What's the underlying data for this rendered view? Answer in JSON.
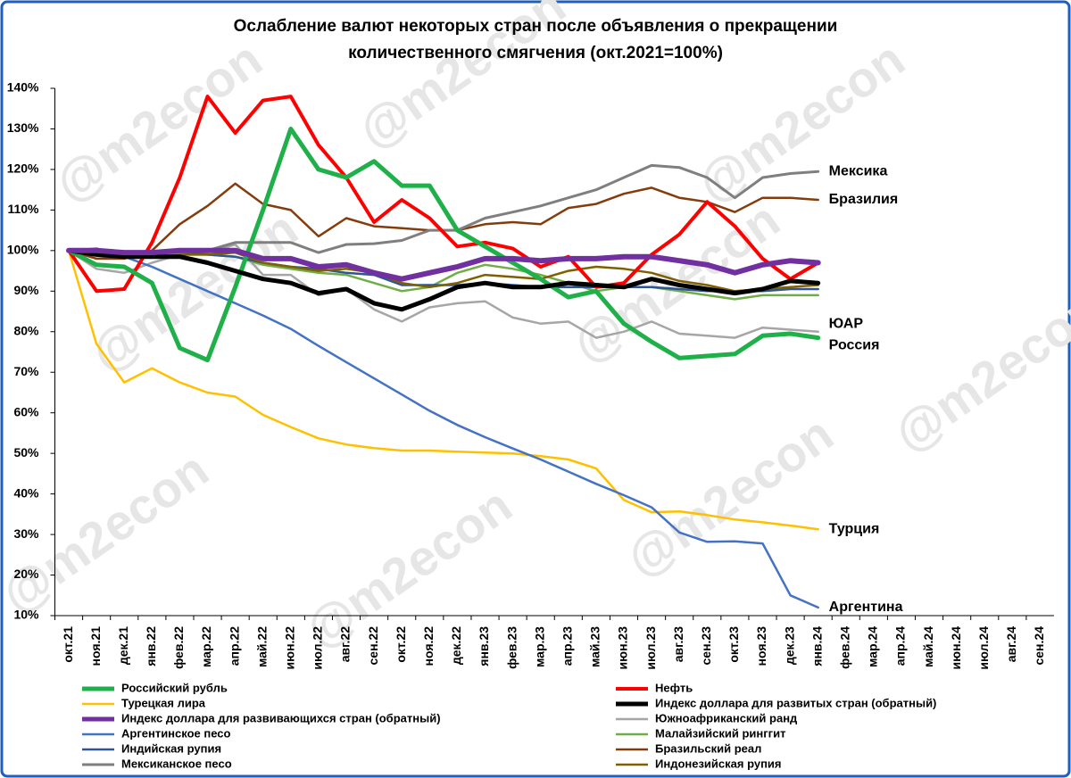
{
  "chart_data": {
    "type": "line",
    "title": [
      "Ослабление валют некоторых стран после объявления о прекращении",
      "количественного смягчения  (окт.2021=100%)"
    ],
    "watermark": "@m2econ",
    "categories": [
      "окт.21",
      "ноя.21",
      "дек.21",
      "янв.22",
      "фев.22",
      "мар.22",
      "апр.22",
      "май.22",
      "июн.22",
      "июл.22",
      "авг.22",
      "сен.22",
      "окт.22",
      "ноя.22",
      "дек.22",
      "янв.23",
      "фев.23",
      "мар.23",
      "апр.23",
      "май.23",
      "июн.23",
      "июл.23",
      "авг.23",
      "сен.23",
      "окт.23",
      "ноя.23",
      "дек.23",
      "янв.24",
      "фев.24",
      "мар.24",
      "апр.24",
      "май.24",
      "июн.24",
      "июл.24",
      "авг.24",
      "сен.24"
    ],
    "ylim": [
      10,
      140
    ],
    "yticks": [
      {
        "value": 10,
        "label": "10%"
      },
      {
        "value": 20,
        "label": "20%"
      },
      {
        "value": 30,
        "label": "30%"
      },
      {
        "value": 40,
        "label": "40%"
      },
      {
        "value": 50,
        "label": "50%"
      },
      {
        "value": 60,
        "label": "60%"
      },
      {
        "value": 70,
        "label": "70%"
      },
      {
        "value": 80,
        "label": "80%"
      },
      {
        "value": 90,
        "label": "90%"
      },
      {
        "value": 100,
        "label": "100%"
      },
      {
        "value": 110,
        "label": "110%"
      },
      {
        "value": 120,
        "label": "120%"
      },
      {
        "value": 130,
        "label": "130%"
      },
      {
        "value": 140,
        "label": "140%"
      }
    ],
    "grid": false,
    "series": [
      {
        "name": "Российский рубль",
        "color": "#1fb04a",
        "width": 5,
        "label": "Россия",
        "values": [
          100,
          96.5,
          96,
          92,
          76,
          73,
          91,
          110,
          130,
          120,
          118,
          122,
          116,
          116,
          105,
          101,
          97,
          93,
          88.5,
          90,
          82,
          77.5,
          73.5,
          74,
          74.5,
          79,
          79.5,
          78.5,
          null,
          null,
          null,
          null,
          null,
          null,
          null,
          null
        ]
      },
      {
        "name": "Нефть",
        "color": "#ff0000",
        "width": 4,
        "values": [
          100,
          90,
          90.5,
          102,
          118,
          138,
          129,
          137,
          138,
          126,
          118,
          107,
          112.5,
          108,
          101,
          102,
          100.5,
          96,
          98.5,
          91,
          92,
          99,
          104,
          112,
          106,
          98,
          93,
          97,
          null,
          null,
          null,
          null,
          null,
          null,
          null,
          null
        ]
      },
      {
        "name": "Турецкая лира",
        "color": "#ffc000",
        "width": 2.5,
        "label": "Турция",
        "values": [
          100,
          77,
          67.5,
          71,
          67.5,
          65,
          64,
          59.5,
          56.5,
          53.7,
          52.2,
          51.3,
          50.7,
          50.7,
          50.4,
          50.2,
          50,
          49.3,
          48.5,
          46.3,
          38.5,
          35.5,
          35.7,
          34.8,
          33.7,
          33,
          32.2,
          31.3,
          null,
          null,
          null,
          null,
          null,
          null,
          null,
          null
        ]
      },
      {
        "name": "Индекс доллара для развитых стран (обратный)",
        "color": "#000000",
        "width": 5,
        "values": [
          100,
          99,
          98.5,
          98.5,
          98.5,
          97,
          95,
          93,
          92,
          89.5,
          90.5,
          87,
          85.5,
          88,
          91,
          92,
          91,
          91,
          92,
          91.5,
          91,
          93,
          91.5,
          90.5,
          89.5,
          90.5,
          92.5,
          92,
          null,
          null,
          null,
          null,
          null,
          null,
          null,
          null
        ]
      },
      {
        "name": "Индекс доллара для развивающихся стран (обратный)",
        "color": "#7030a0",
        "width": 6,
        "values": [
          100,
          100,
          99.5,
          99.5,
          100,
          100,
          100,
          98,
          98,
          96,
          96.5,
          94.5,
          93,
          94.5,
          96,
          98,
          98,
          97.5,
          98,
          98,
          98.5,
          98.5,
          97.5,
          96.5,
          94.5,
          96.5,
          97.5,
          97,
          null,
          null,
          null,
          null,
          null,
          null,
          null,
          null
        ]
      },
      {
        "name": "Южноафриканский ранд",
        "color": "#a6a6a6",
        "width": 2.5,
        "label": "ЮАР",
        "values": [
          100,
          95.5,
          94.5,
          97,
          99,
          99.5,
          101.5,
          94,
          94,
          89,
          90.5,
          85.5,
          82.5,
          86,
          87,
          87.5,
          83.5,
          82,
          82.5,
          78.5,
          80,
          82.5,
          79.5,
          79,
          78.5,
          81,
          80.5,
          80,
          null,
          null,
          null,
          null,
          null,
          null,
          null,
          null
        ]
      },
      {
        "name": "Аргентинское песо",
        "color": "#4472c4",
        "width": 2.5,
        "label": "Аргентина",
        "values": [
          100,
          100,
          98.5,
          96,
          93,
          90,
          87,
          84,
          80.7,
          76.5,
          72.5,
          68.5,
          64.5,
          60.5,
          57,
          54,
          51.2,
          48.5,
          45.5,
          42.5,
          39.7,
          36.7,
          30.5,
          28.2,
          28.3,
          27.8,
          15,
          12,
          null,
          null,
          null,
          null,
          null,
          null,
          null,
          null
        ]
      },
      {
        "name": "Малайзийский ринггит",
        "color": "#70ad47",
        "width": 2.5,
        "values": [
          100,
          99.5,
          99.5,
          99,
          99,
          99,
          98.5,
          96.5,
          95.5,
          94.5,
          94,
          92,
          90,
          91,
          94.5,
          96.5,
          95.5,
          94,
          92,
          90,
          91,
          91,
          90,
          89,
          88,
          89,
          89,
          89,
          null,
          null,
          null,
          null,
          null,
          null,
          null,
          null
        ]
      },
      {
        "name": "Индийская рупия",
        "color": "#2f5597",
        "width": 2.5,
        "values": [
          100,
          100.5,
          99,
          99.5,
          99.5,
          99,
          98.5,
          97,
          96,
          95.5,
          94.5,
          94,
          91.5,
          91.5,
          91.5,
          92,
          91.5,
          91,
          91,
          91,
          91,
          91,
          90.5,
          90,
          90,
          90,
          90.5,
          90.5,
          null,
          null,
          null,
          null,
          null,
          null,
          null,
          null
        ]
      },
      {
        "name": "Бразильский реал",
        "color": "#843c0c",
        "width": 2.5,
        "label": "Бразилия",
        "values": [
          100,
          98,
          98,
          100,
          106.5,
          111,
          116.5,
          111.5,
          110,
          103.5,
          108,
          106,
          105.5,
          105,
          105,
          106.5,
          107,
          106.5,
          110.5,
          111.5,
          114,
          115.5,
          113,
          112,
          109.5,
          113,
          113,
          112.5,
          null,
          null,
          null,
          null,
          null,
          null,
          null,
          null
        ]
      },
      {
        "name": "Мексиканское песо",
        "color": "#7f7f7f",
        "width": 3,
        "label": "Мексика",
        "values": [
          100,
          99,
          99,
          99,
          99.5,
          100,
          102,
          102,
          102,
          99.5,
          101.5,
          101.7,
          102.5,
          105,
          105,
          108,
          109.5,
          111,
          113,
          115,
          118,
          121,
          120.5,
          118,
          113,
          118,
          119,
          119.5,
          null,
          null,
          null,
          null,
          null,
          null,
          null,
          null
        ]
      },
      {
        "name": "Индонезийская рупия",
        "color": "#7f6000",
        "width": 2.5,
        "values": [
          100,
          99.5,
          99,
          99,
          99,
          99,
          99.5,
          97,
          96,
          95,
          95.5,
          94.5,
          92,
          91,
          92,
          94,
          93.5,
          93,
          95,
          96,
          95.5,
          94.5,
          92.5,
          91.5,
          90,
          90.5,
          91,
          91.5,
          null,
          null,
          null,
          null,
          null,
          null,
          null,
          null
        ]
      }
    ]
  }
}
